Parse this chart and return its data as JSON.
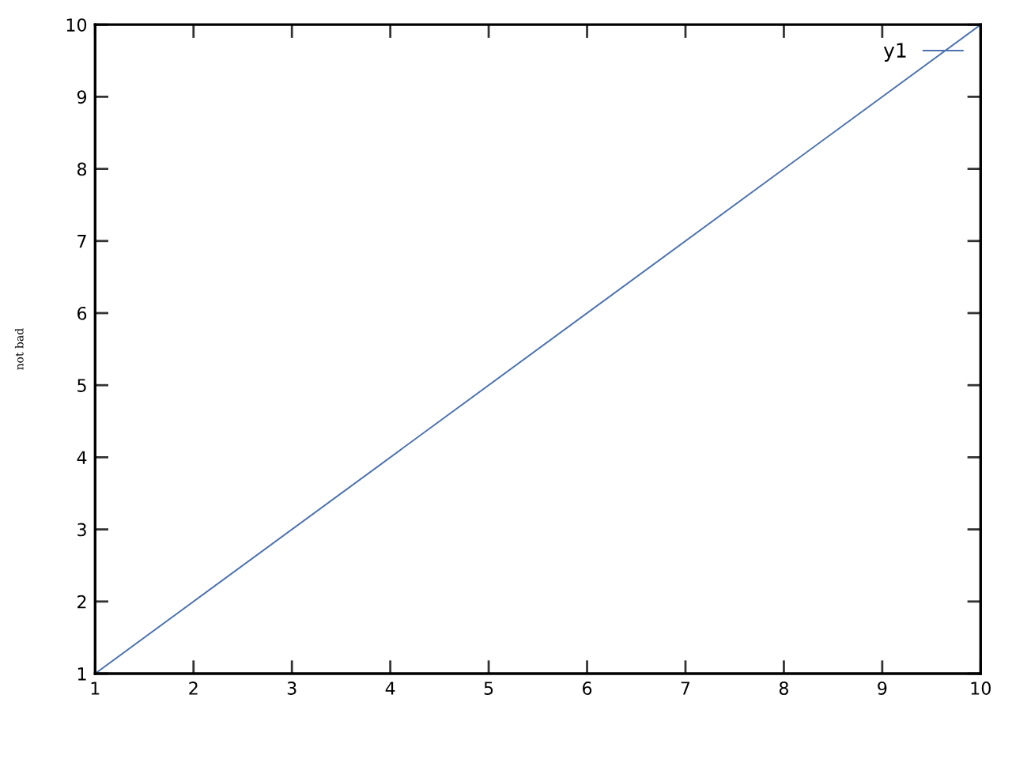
{
  "chart_data": {
    "type": "line",
    "ylabel": "not bad",
    "x": [
      1,
      10
    ],
    "series": [
      {
        "name": "y1",
        "color": "#4c72b0",
        "values": [
          1,
          10
        ]
      }
    ],
    "xlim": [
      1,
      10
    ],
    "ylim": [
      1,
      10
    ],
    "xticks": [
      1,
      2,
      3,
      4,
      5,
      6,
      7,
      8,
      9,
      10
    ],
    "yticks": [
      1,
      2,
      3,
      4,
      5,
      6,
      7,
      8,
      9,
      10
    ],
    "grid": false,
    "legend": "top right",
    "marker": "none",
    "line_style": "solid"
  }
}
